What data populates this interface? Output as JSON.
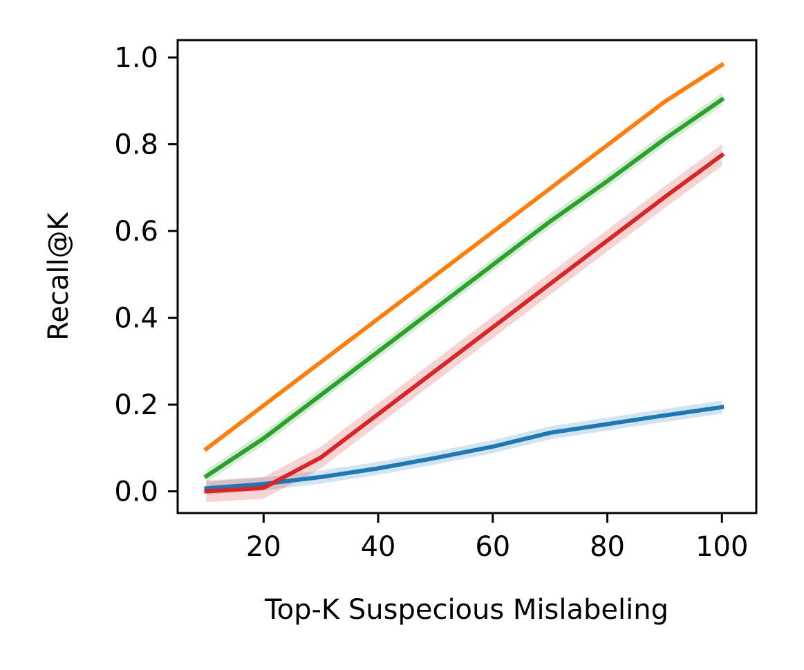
{
  "chart_data": {
    "type": "line",
    "title": "",
    "xlabel": "Top-K Suspecious Mislabeling",
    "ylabel": "Recall@K",
    "xlim": [
      5,
      106
    ],
    "ylim": [
      -0.05,
      1.04
    ],
    "x_ticks": [
      20,
      40,
      60,
      80,
      100
    ],
    "x_tick_labels": [
      "20",
      "40",
      "60",
      "80",
      "100"
    ],
    "y_ticks": [
      0.0,
      0.2,
      0.4,
      0.6,
      0.8,
      1.0
    ],
    "y_tick_labels": [
      "0.0",
      "0.2",
      "0.4",
      "0.6",
      "0.8",
      "1.0"
    ],
    "grid": false,
    "legend": false,
    "x": [
      10,
      20,
      30,
      40,
      50,
      60,
      70,
      80,
      90,
      100
    ],
    "series": [
      {
        "color": "#ff7f0e",
        "values": [
          0.098,
          0.198,
          0.298,
          0.398,
          0.498,
          0.598,
          0.698,
          0.798,
          0.898,
          0.983
        ],
        "band": 0.0
      },
      {
        "color": "#2ca02c",
        "values": [
          0.035,
          0.122,
          0.222,
          0.322,
          0.422,
          0.522,
          0.622,
          0.715,
          0.812,
          0.903
        ],
        "band": 0.015
      },
      {
        "color": "#d62728",
        "values": [
          0.0,
          0.008,
          0.078,
          0.178,
          0.278,
          0.378,
          0.478,
          0.578,
          0.678,
          0.775
        ],
        "band": 0.025
      },
      {
        "color": "#1f77b4",
        "values": [
          0.007,
          0.017,
          0.033,
          0.053,
          0.077,
          0.103,
          0.135,
          0.155,
          0.175,
          0.194
        ],
        "band": 0.015
      }
    ]
  }
}
